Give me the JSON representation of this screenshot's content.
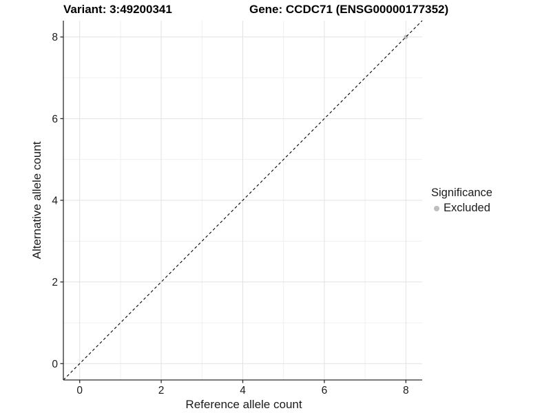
{
  "chart_data": {
    "type": "scatter",
    "titles": {
      "left": "Variant: 3:49200341",
      "right": "Gene: CCDC71 (ENSG00000177352)"
    },
    "xlabel": "Reference allele count",
    "ylabel": "Alternative allele count",
    "xlim": [
      -0.4,
      8.4
    ],
    "ylim": [
      -0.4,
      8.4
    ],
    "x_ticks": [
      0,
      2,
      4,
      6,
      8
    ],
    "y_ticks": [
      0,
      2,
      4,
      6,
      8
    ],
    "minor_x_ticks": [
      1,
      3,
      5,
      7
    ],
    "minor_y_ticks": [
      1,
      3,
      5,
      7
    ],
    "grid": true,
    "identity_line": {
      "equation": "y = x",
      "style": "dashed",
      "color": "#000000"
    },
    "series": [
      {
        "name": "Excluded",
        "color": "#bebebe",
        "points": [
          [
            8,
            8
          ]
        ]
      }
    ],
    "legend": {
      "title": "Significance",
      "position": "right",
      "items": [
        {
          "label": "Excluded",
          "color": "#bebebe"
        }
      ]
    }
  },
  "colors": {
    "background": "#ffffff",
    "grid_major": "#e2e2e2",
    "grid_minor": "#efefef",
    "axis_line": "#2b2b2b",
    "tick_text": "#1a1a1a"
  }
}
